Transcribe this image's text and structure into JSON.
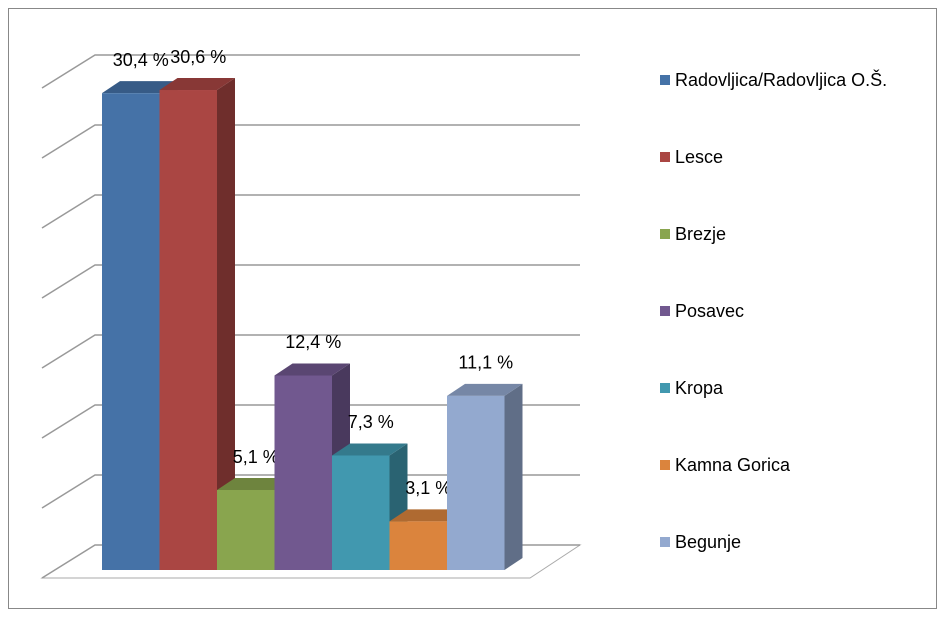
{
  "chart_data": {
    "type": "bar3d",
    "categories": [
      "Radovljica/Radovljica O.Š.",
      "Lesce",
      "Brezje",
      "Posavec",
      "Kropa",
      "Kamna Gorica",
      "Begunje"
    ],
    "values": [
      30.4,
      30.6,
      5.1,
      12.4,
      7.3,
      3.1,
      11.1
    ],
    "value_labels": [
      "30,4 %",
      "30,6 %",
      "5,1 %",
      "12,4 %",
      "7,3 %",
      "3,1 %",
      "11,1 %"
    ],
    "colors": [
      "#4572a7",
      "#aa4643",
      "#89a54e",
      "#71588f",
      "#4198af",
      "#db843d",
      "#93a9cf"
    ],
    "ylim": [
      0,
      35
    ],
    "yticks": [
      0,
      5,
      10,
      15,
      20,
      25,
      30,
      35
    ],
    "grid": true,
    "legend": "right"
  }
}
